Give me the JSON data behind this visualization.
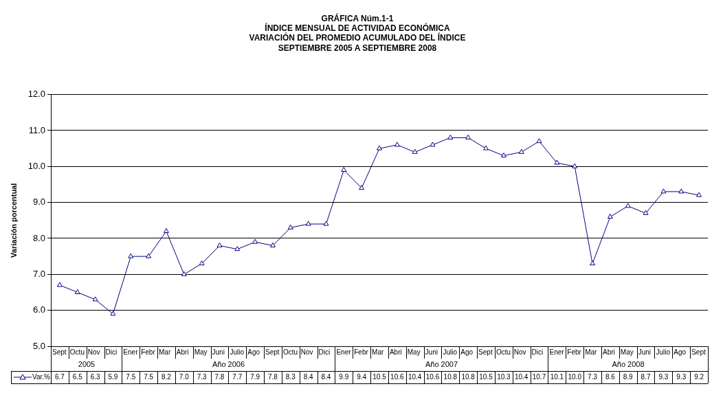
{
  "chart_data": {
    "type": "line",
    "title": "GRÁFICA Núm.1-1\nÍNDICE MENSUAL DE ACTIVIDAD ECONÓMICA\nVARIACIÓN DEL PROMEDIO ACUMULADO DEL ÍNDICE\nSEPTIEMBRE 2005 A SEPTIEMBRE 2008",
    "ylabel": "Variación porcentual",
    "categories": [
      "Sept",
      "Octu",
      "Nov",
      "Dici",
      "Ener",
      "Febr",
      "Mar",
      "Abri",
      "May",
      "Juni",
      "Julio",
      "Ago",
      "Sept",
      "Octu",
      "Nov",
      "Dici",
      "Ener",
      "Febr",
      "Mar",
      "Abri",
      "May",
      "Juni",
      "Julio",
      "Ago",
      "Sept",
      "Octu",
      "Nov",
      "Dici",
      "Ener",
      "Febr",
      "Mar",
      "Abri",
      "May",
      "Juni",
      "Julio",
      "Ago",
      "Sept"
    ],
    "series": [
      {
        "name": "Var.%",
        "color": "#000080",
        "values": [
          6.7,
          6.5,
          6.3,
          5.9,
          7.5,
          7.5,
          8.2,
          7.0,
          7.3,
          7.8,
          7.7,
          7.9,
          7.8,
          8.3,
          8.4,
          8.4,
          9.9,
          9.4,
          10.5,
          10.6,
          10.4,
          10.6,
          10.8,
          10.8,
          10.5,
          10.3,
          10.4,
          10.7,
          10.1,
          10.0,
          7.3,
          8.6,
          8.9,
          8.7,
          9.3,
          9.3,
          9.2
        ],
        "value_labels": [
          "6.7",
          "6.5",
          "6.3",
          "5.9",
          "7.5",
          "7.5",
          "8.2",
          "7.0",
          "7.3",
          "7.8",
          "7.7",
          "7.9",
          "7.8",
          "8.3",
          "8.4",
          "8.4",
          "9.9",
          "9.4",
          "10.5",
          "10.6",
          "10.4",
          "10.6",
          "10.8",
          "10.8",
          "10.5",
          "10.3",
          "10.4",
          "10.7",
          "10.1",
          "10.0",
          "7.3",
          "8.6",
          "8.9",
          "8.7",
          "9.3",
          "9.3",
          "9.2"
        ]
      }
    ],
    "annotations": [
      "2005",
      "Año 2006",
      "Año 2007",
      "Año 2008"
    ],
    "ylim": [
      5,
      12
    ],
    "yticks": [
      {
        "value": 5,
        "label": "5.0"
      },
      {
        "value": 6,
        "label": "6.0"
      },
      {
        "value": 7,
        "label": "7.0"
      },
      {
        "value": 8,
        "label": "8.0"
      },
      {
        "value": 9,
        "label": "9.0"
      },
      {
        "value": 10,
        "label": "10.0"
      },
      {
        "value": 11,
        "label": "11.0"
      },
      {
        "value": 12,
        "label": "12.0"
      }
    ],
    "grid": "y",
    "marker": "triangle",
    "line_style": "solid",
    "legend": "bottom"
  }
}
